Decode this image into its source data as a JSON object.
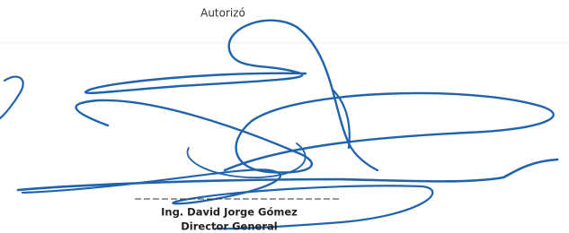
{
  "header": {
    "title": "Autorizó"
  },
  "signatory": {
    "name": "Ing. David Jorge Gómez",
    "position": "Director General"
  }
}
